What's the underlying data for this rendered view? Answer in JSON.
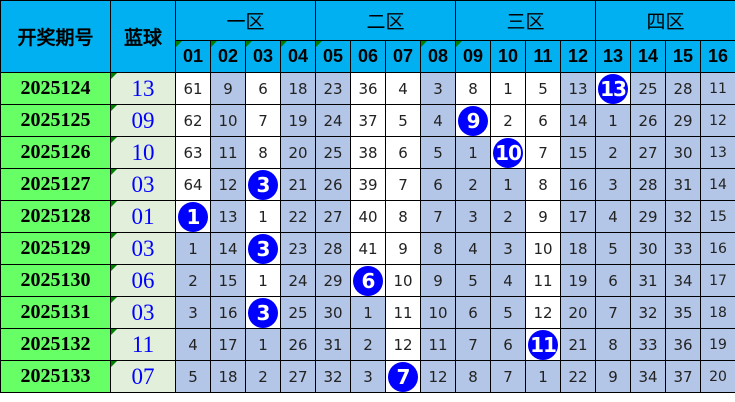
{
  "header": {
    "period_label": "开奖期号",
    "blue_label": "蓝球",
    "zones": [
      "一区",
      "二区",
      "三区",
      "四区"
    ],
    "numbers": [
      "01",
      "02",
      "03",
      "04",
      "05",
      "06",
      "07",
      "08",
      "09",
      "10",
      "11",
      "12",
      "13",
      "14",
      "15",
      "16"
    ]
  },
  "colors": {
    "header": "#00B0F0",
    "period_bg": "#66FF66",
    "blue_bg": "#E2EFDA",
    "blue_text": "#0000FF",
    "shaded": "#B4C6E7",
    "ball": "#0000FF"
  },
  "rows": [
    {
      "period": "2025124",
      "blue": "13",
      "values": [
        61,
        9,
        6,
        18,
        23,
        36,
        4,
        3,
        8,
        1,
        5,
        13,
        13,
        25,
        28,
        11
      ],
      "hit": 13,
      "white": [
        1,
        3,
        6,
        7,
        9,
        10,
        11,
        13
      ]
    },
    {
      "period": "2025125",
      "blue": "09",
      "values": [
        62,
        10,
        7,
        19,
        24,
        37,
        5,
        4,
        9,
        2,
        6,
        14,
        1,
        26,
        29,
        12
      ],
      "hit": 9,
      "white": [
        1,
        3,
        6,
        7,
        9,
        10,
        11
      ]
    },
    {
      "period": "2025126",
      "blue": "10",
      "values": [
        63,
        11,
        8,
        20,
        25,
        38,
        6,
        5,
        1,
        10,
        7,
        15,
        2,
        27,
        30,
        13
      ],
      "hit": 10,
      "white": [
        1,
        3,
        6,
        7,
        10,
        11
      ]
    },
    {
      "period": "2025127",
      "blue": "03",
      "values": [
        64,
        12,
        3,
        21,
        26,
        39,
        7,
        6,
        2,
        1,
        8,
        16,
        3,
        28,
        31,
        14
      ],
      "hit": 3,
      "white": [
        1,
        3,
        6,
        7,
        11
      ]
    },
    {
      "period": "2025128",
      "blue": "01",
      "values": [
        1,
        13,
        1,
        22,
        27,
        40,
        8,
        7,
        3,
        2,
        9,
        17,
        4,
        29,
        32,
        15
      ],
      "hit": 1,
      "white": [
        1,
        3,
        6,
        7,
        11
      ]
    },
    {
      "period": "2025129",
      "blue": "03",
      "values": [
        1,
        14,
        3,
        23,
        28,
        41,
        9,
        8,
        4,
        3,
        10,
        18,
        5,
        30,
        33,
        16
      ],
      "hit": 3,
      "white": [
        3,
        6,
        7,
        11
      ]
    },
    {
      "period": "2025130",
      "blue": "06",
      "values": [
        2,
        15,
        1,
        24,
        29,
        6,
        10,
        9,
        5,
        4,
        11,
        19,
        6,
        31,
        34,
        17
      ],
      "hit": 6,
      "white": [
        3,
        6,
        7,
        11
      ]
    },
    {
      "period": "2025131",
      "blue": "03",
      "values": [
        3,
        16,
        3,
        25,
        30,
        1,
        11,
        10,
        6,
        5,
        12,
        20,
        7,
        32,
        35,
        18
      ],
      "hit": 3,
      "white": [
        3,
        7,
        11
      ]
    },
    {
      "period": "2025132",
      "blue": "11",
      "values": [
        4,
        17,
        1,
        26,
        31,
        2,
        12,
        11,
        7,
        6,
        11,
        21,
        8,
        33,
        36,
        19
      ],
      "hit": 11,
      "white": [
        7,
        11
      ]
    },
    {
      "period": "2025133",
      "blue": "07",
      "values": [
        5,
        18,
        2,
        27,
        32,
        3,
        7,
        12,
        8,
        7,
        1,
        22,
        9,
        34,
        37,
        20
      ],
      "hit": 7,
      "white": [
        7
      ]
    }
  ]
}
